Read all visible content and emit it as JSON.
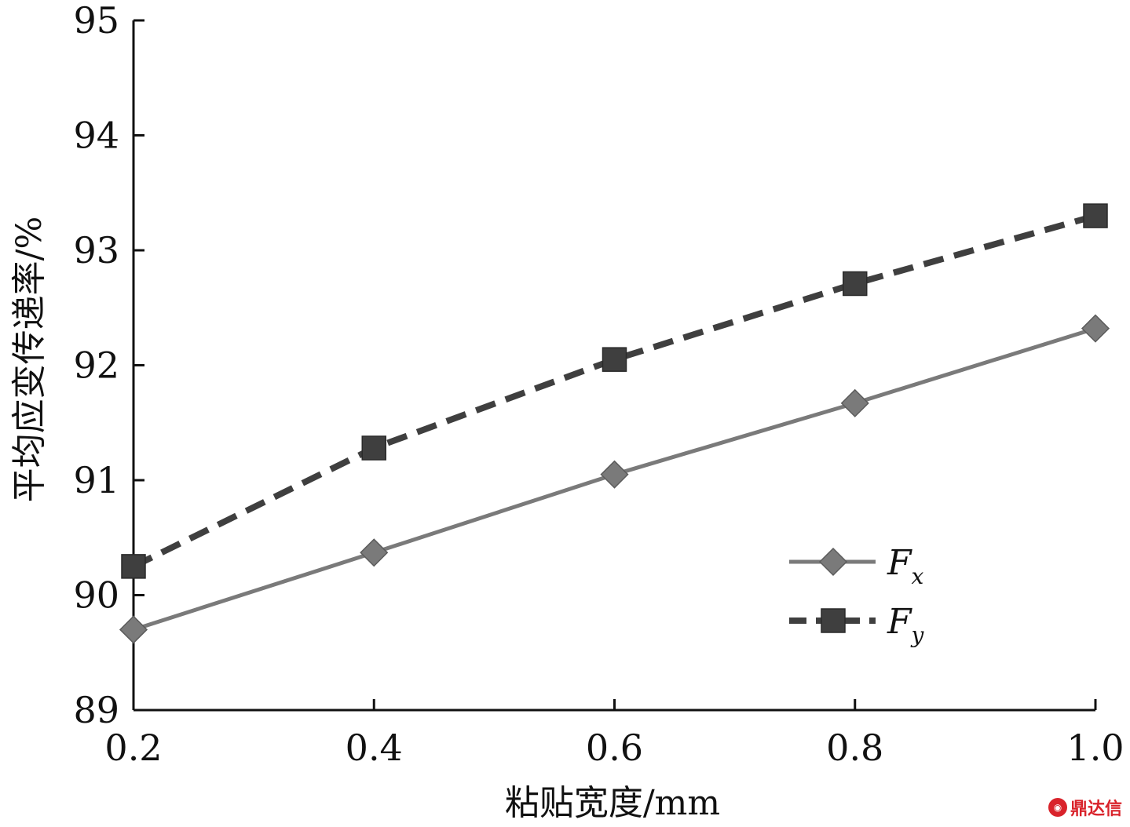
{
  "chart_data": {
    "type": "line",
    "title": "",
    "xlabel": "粘贴宽度/mm",
    "ylabel": "平均应变传递率/%",
    "x": [
      0.2,
      0.4,
      0.6,
      0.8,
      1.0
    ],
    "x_tick_labels": [
      "0.2",
      "0.4",
      "0.6",
      "0.8",
      "1.0"
    ],
    "y_ticks": [
      89,
      90,
      91,
      92,
      93,
      94,
      95
    ],
    "y_tick_labels": [
      "89",
      "90",
      "91",
      "92",
      "93",
      "94",
      "95"
    ],
    "xlim": [
      0.2,
      1.0
    ],
    "ylim": [
      89,
      95
    ],
    "grid": false,
    "legend_position": "lower-right",
    "series": [
      {
        "name": "F",
        "subscript": "x",
        "style": "solid",
        "marker": "diamond",
        "color": "#7a7a7a",
        "values": [
          89.7,
          90.37,
          91.05,
          91.67,
          92.32
        ]
      },
      {
        "name": "F",
        "subscript": "y",
        "style": "dashed",
        "marker": "square",
        "color": "#3f3f3f",
        "values": [
          90.25,
          91.28,
          92.05,
          92.71,
          93.3
        ]
      }
    ]
  },
  "watermark": {
    "text": "鼎达信",
    "icon": "logo-icon"
  }
}
